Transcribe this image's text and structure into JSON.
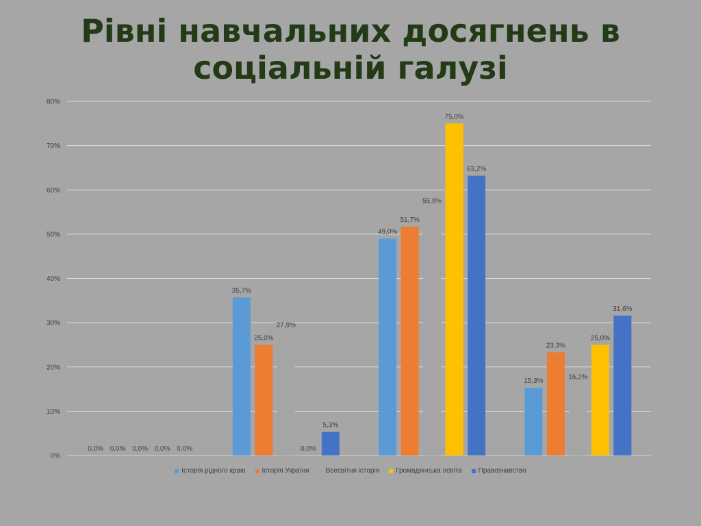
{
  "slide": {
    "title_line1": "Рівні навчальних досягнень в",
    "title_line2": "соціальній галузі"
  },
  "chart_data": {
    "type": "bar",
    "categories": [
      "",
      "",
      "",
      ""
    ],
    "ylim": [
      0,
      80
    ],
    "yticks": [
      0,
      10,
      20,
      30,
      40,
      50,
      60,
      70,
      80
    ],
    "ytick_labels": [
      "0%",
      "10%",
      "20%",
      "30%",
      "40%",
      "50%",
      "60%",
      "70%",
      "80%"
    ],
    "grid": true,
    "legend_position": "bottom",
    "series": [
      {
        "name": "Історія рідного краю",
        "color": "#5b9bd5",
        "values": [
          0.0,
          35.7,
          49.0,
          15.3
        ],
        "labels": [
          "0,0%",
          "35,7%",
          "49,0%",
          "15,3%"
        ]
      },
      {
        "name": "Історія України",
        "color": "#ed7d31",
        "values": [
          0.0,
          25.0,
          51.7,
          23.3
        ],
        "labels": [
          "0,0%",
          "25,0%",
          "51,7%",
          "23,3%"
        ]
      },
      {
        "name": "Всесвітня історія",
        "color": "#a5a5a5",
        "values": [
          0.0,
          27.9,
          55.9,
          16.2
        ],
        "labels": [
          "0,0%",
          "27,9%",
          "55,9%",
          "16,2%"
        ]
      },
      {
        "name": "Громадянська освіта",
        "color": "#ffc000",
        "values": [
          0.0,
          0.0,
          75.0,
          25.0
        ],
        "labels": [
          "0,0%",
          "0,0%",
          "75,0%",
          "25,0%"
        ]
      },
      {
        "name": "Правознавство",
        "color": "#4472c4",
        "values": [
          0.0,
          5.3,
          63.2,
          31.6
        ],
        "labels": [
          "0,0%",
          "5,3%",
          "63,2%",
          "31,6%"
        ]
      }
    ]
  }
}
